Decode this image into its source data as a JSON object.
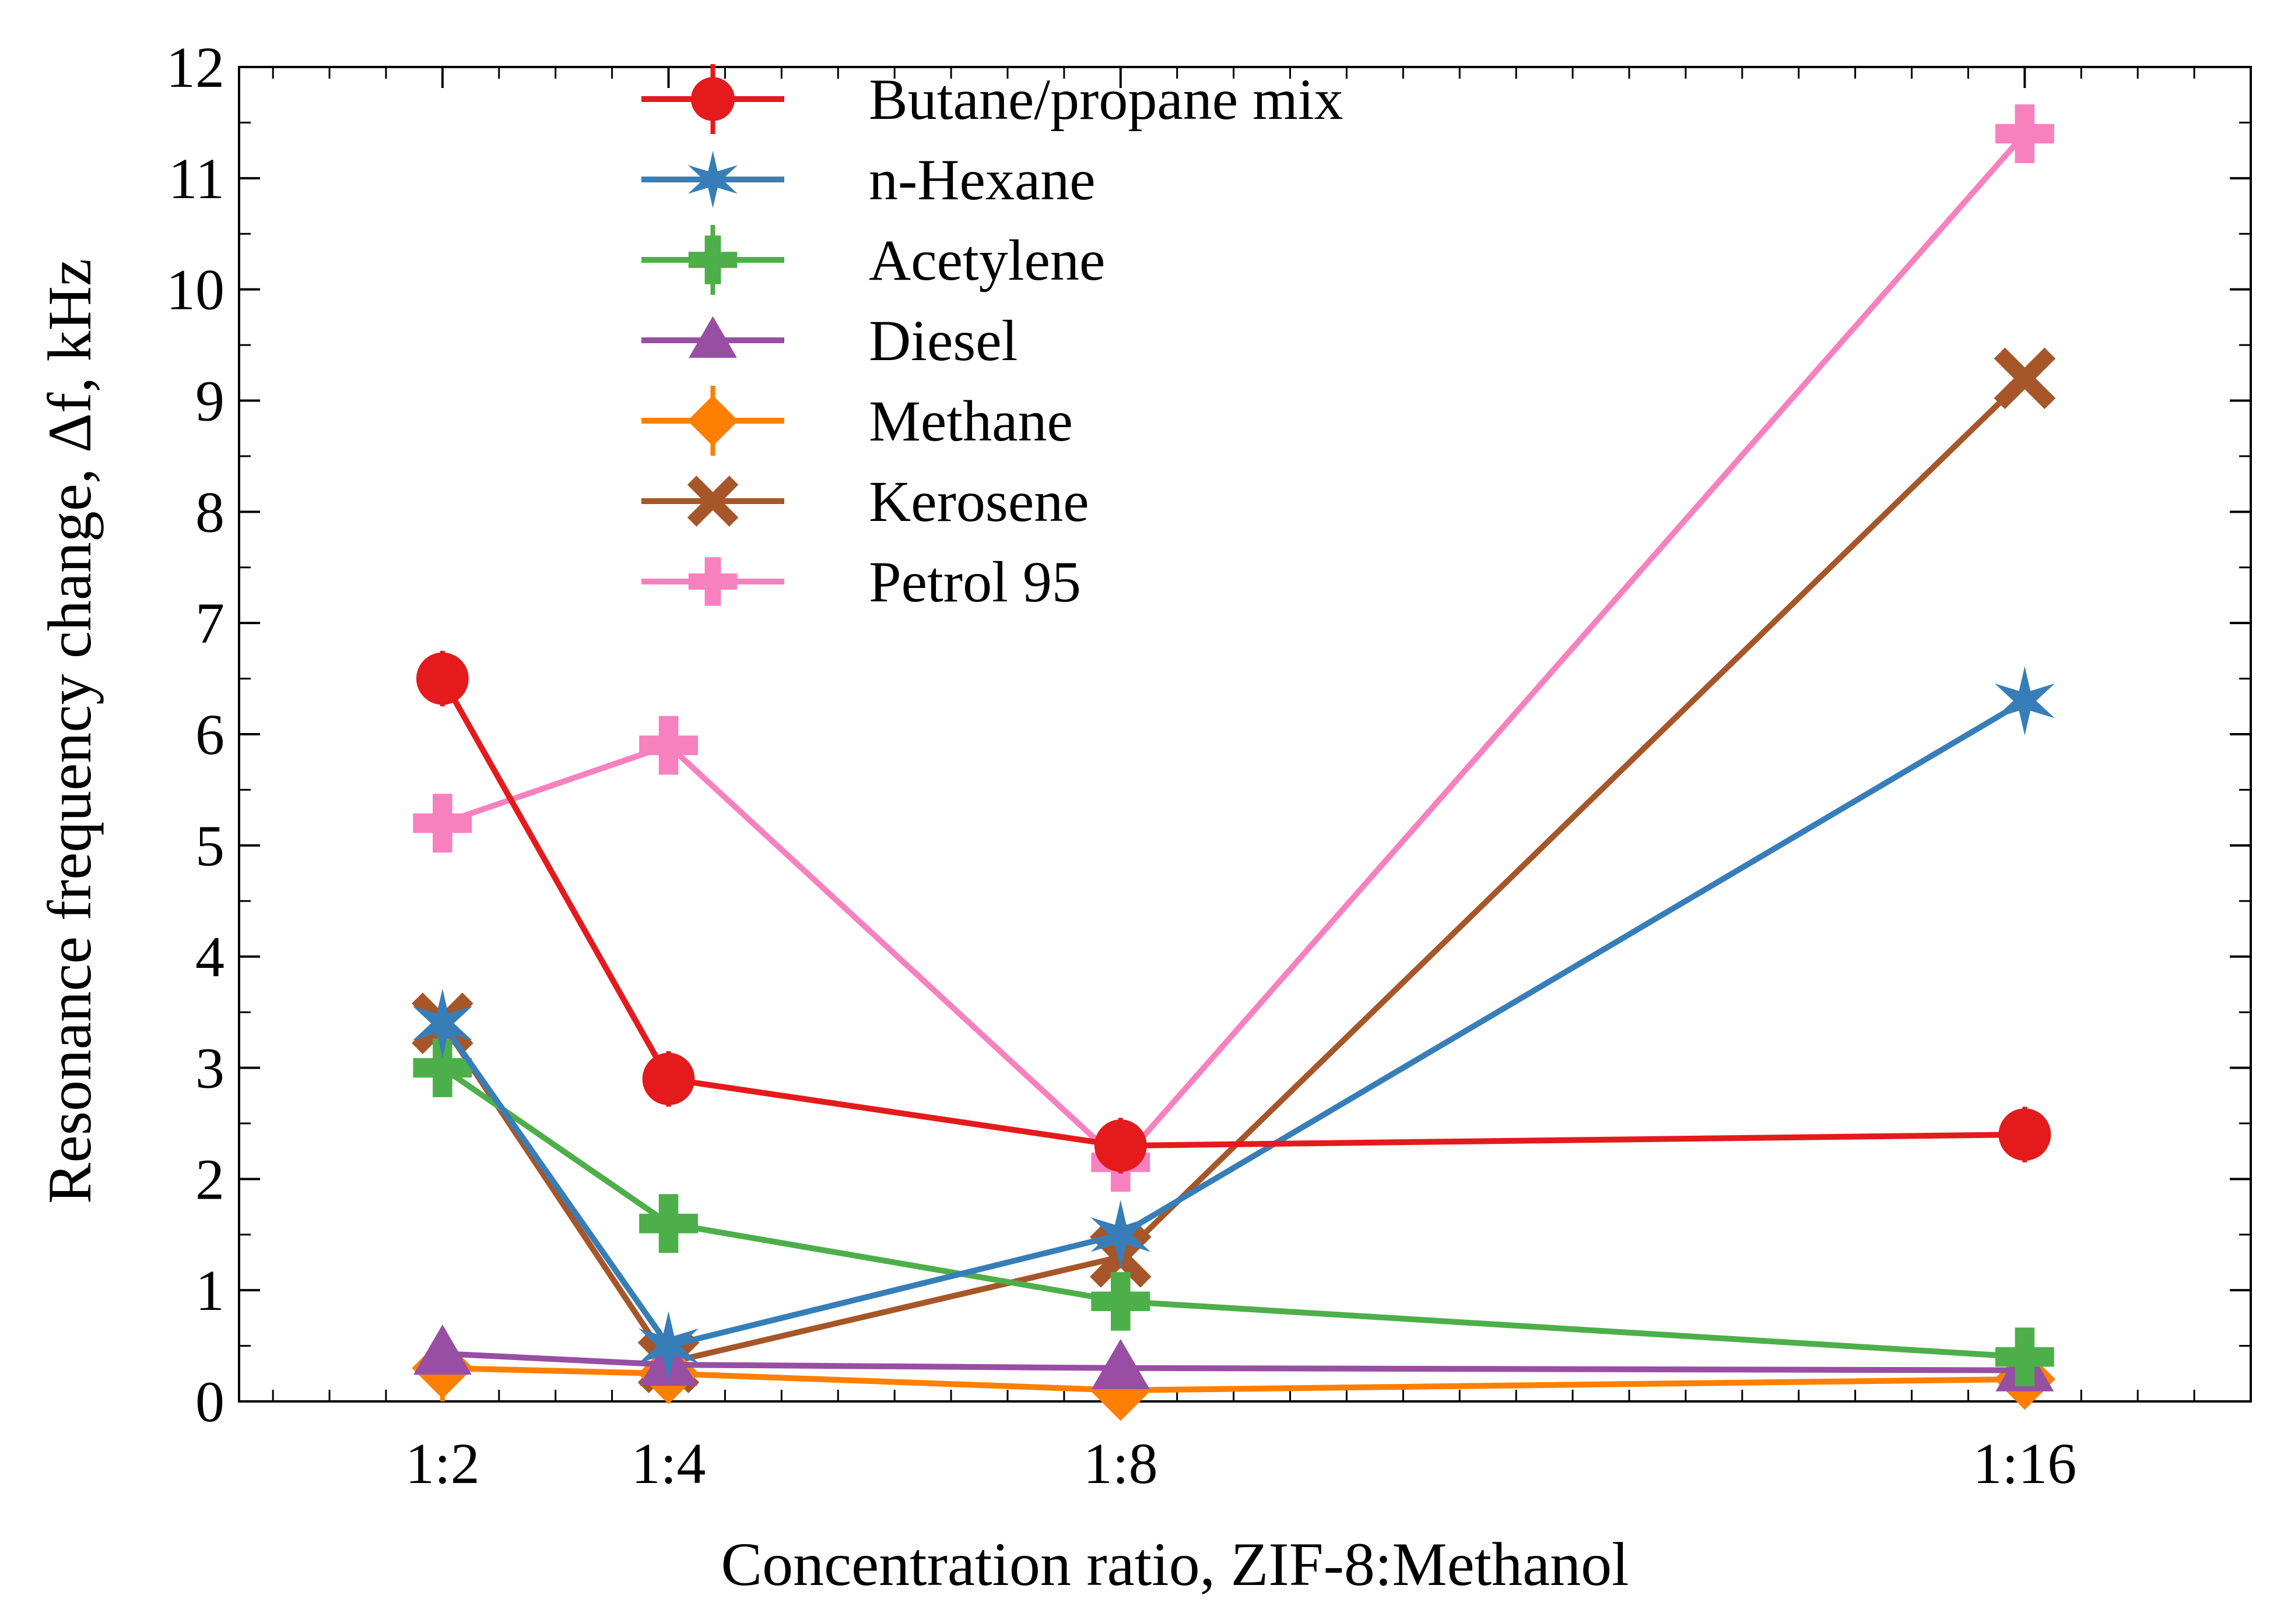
{
  "chart_data": {
    "type": "line",
    "title": "",
    "xlabel": "Concentration ratio, ZIF-8:Methanol",
    "ylabel": "Resonance frequency change, Δf, kHz",
    "categories": [
      "1:2",
      "1:4",
      "1:8",
      "1:16"
    ],
    "x_positions": [
      2,
      4,
      8,
      16
    ],
    "xlim": [
      0.2,
      18.0
    ],
    "ylim": [
      0,
      12
    ],
    "yticks": [
      "0",
      "1",
      "2",
      "3",
      "4",
      "5",
      "6",
      "7",
      "8",
      "9",
      "10",
      "11",
      "12"
    ],
    "grid": false,
    "legend_position": "top-center",
    "series": [
      {
        "name": "Butane/propane mix",
        "color": "#e41a1c",
        "marker": "circle",
        "values": [
          6.5,
          2.9,
          2.3,
          2.4
        ],
        "errors": [
          0.25,
          0.25,
          0.25,
          0.25
        ]
      },
      {
        "name": "n-Hexane",
        "color": "#377eb8",
        "marker": "star",
        "values": [
          3.4,
          0.5,
          1.5,
          6.3
        ],
        "errors": [
          0,
          0,
          0,
          0
        ]
      },
      {
        "name": "Acetylene",
        "color": "#4daf4a",
        "marker": "plus",
        "values": [
          3.0,
          1.6,
          0.9,
          0.4
        ],
        "errors": [
          0.15,
          0.15,
          0.15,
          0.15
        ]
      },
      {
        "name": "Diesel",
        "color": "#984ea3",
        "marker": "triangle",
        "values": [
          0.43,
          0.33,
          0.3,
          0.28
        ],
        "errors": [
          0,
          0,
          0,
          0
        ]
      },
      {
        "name": "Methane",
        "color": "#ff7f00",
        "marker": "diamond",
        "values": [
          0.3,
          0.25,
          0.1,
          0.2
        ],
        "errors": [
          0.3,
          0.25,
          0.1,
          0.2
        ]
      },
      {
        "name": "Kerosene",
        "color": "#a65628",
        "marker": "x",
        "values": [
          3.4,
          0.35,
          1.3,
          9.2
        ],
        "errors": [
          0,
          0,
          0,
          0
        ]
      },
      {
        "name": "Petrol 95",
        "color": "#f781bf",
        "marker": "plus",
        "values": [
          5.2,
          5.9,
          2.15,
          11.4
        ],
        "errors": [
          0,
          0,
          0,
          0
        ]
      }
    ]
  }
}
